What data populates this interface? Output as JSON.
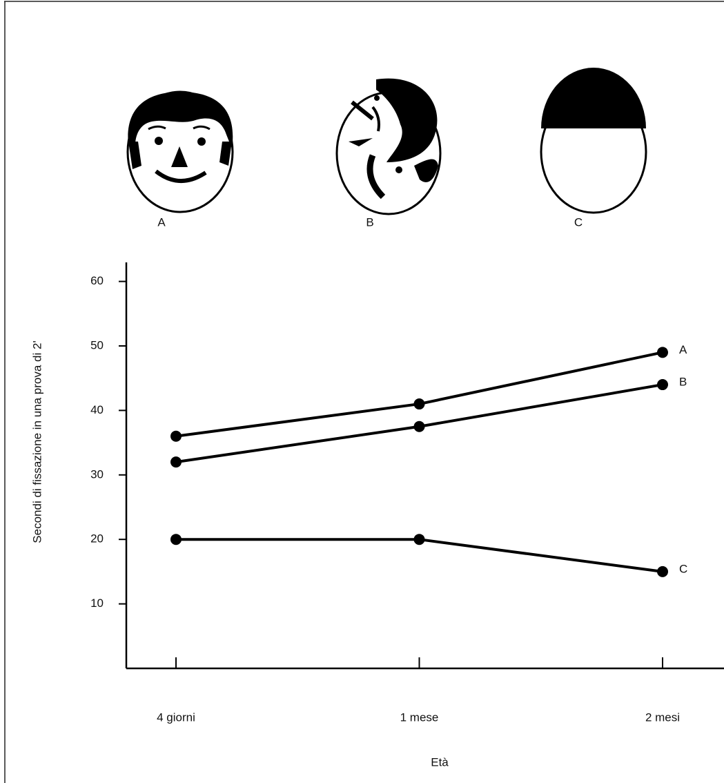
{
  "chart_data": {
    "type": "line",
    "figure_labels": [
      "A",
      "B",
      "C"
    ],
    "categories": [
      "4 giorni",
      "1 mese",
      "2 mesi"
    ],
    "series": [
      {
        "name": "A",
        "color": "#000000",
        "values": [
          36,
          41,
          49
        ]
      },
      {
        "name": "B",
        "color": "#000000",
        "values": [
          32,
          37.5,
          44
        ]
      },
      {
        "name": "C",
        "color": "#000000",
        "values": [
          20,
          20,
          15
        ]
      }
    ],
    "ylim": [
      0,
      63
    ],
    "yticks": [
      10,
      20,
      30,
      40,
      50,
      60
    ],
    "x_label": "Età",
    "y_label": "Secondi di fissazione in una prova di 2'"
  }
}
